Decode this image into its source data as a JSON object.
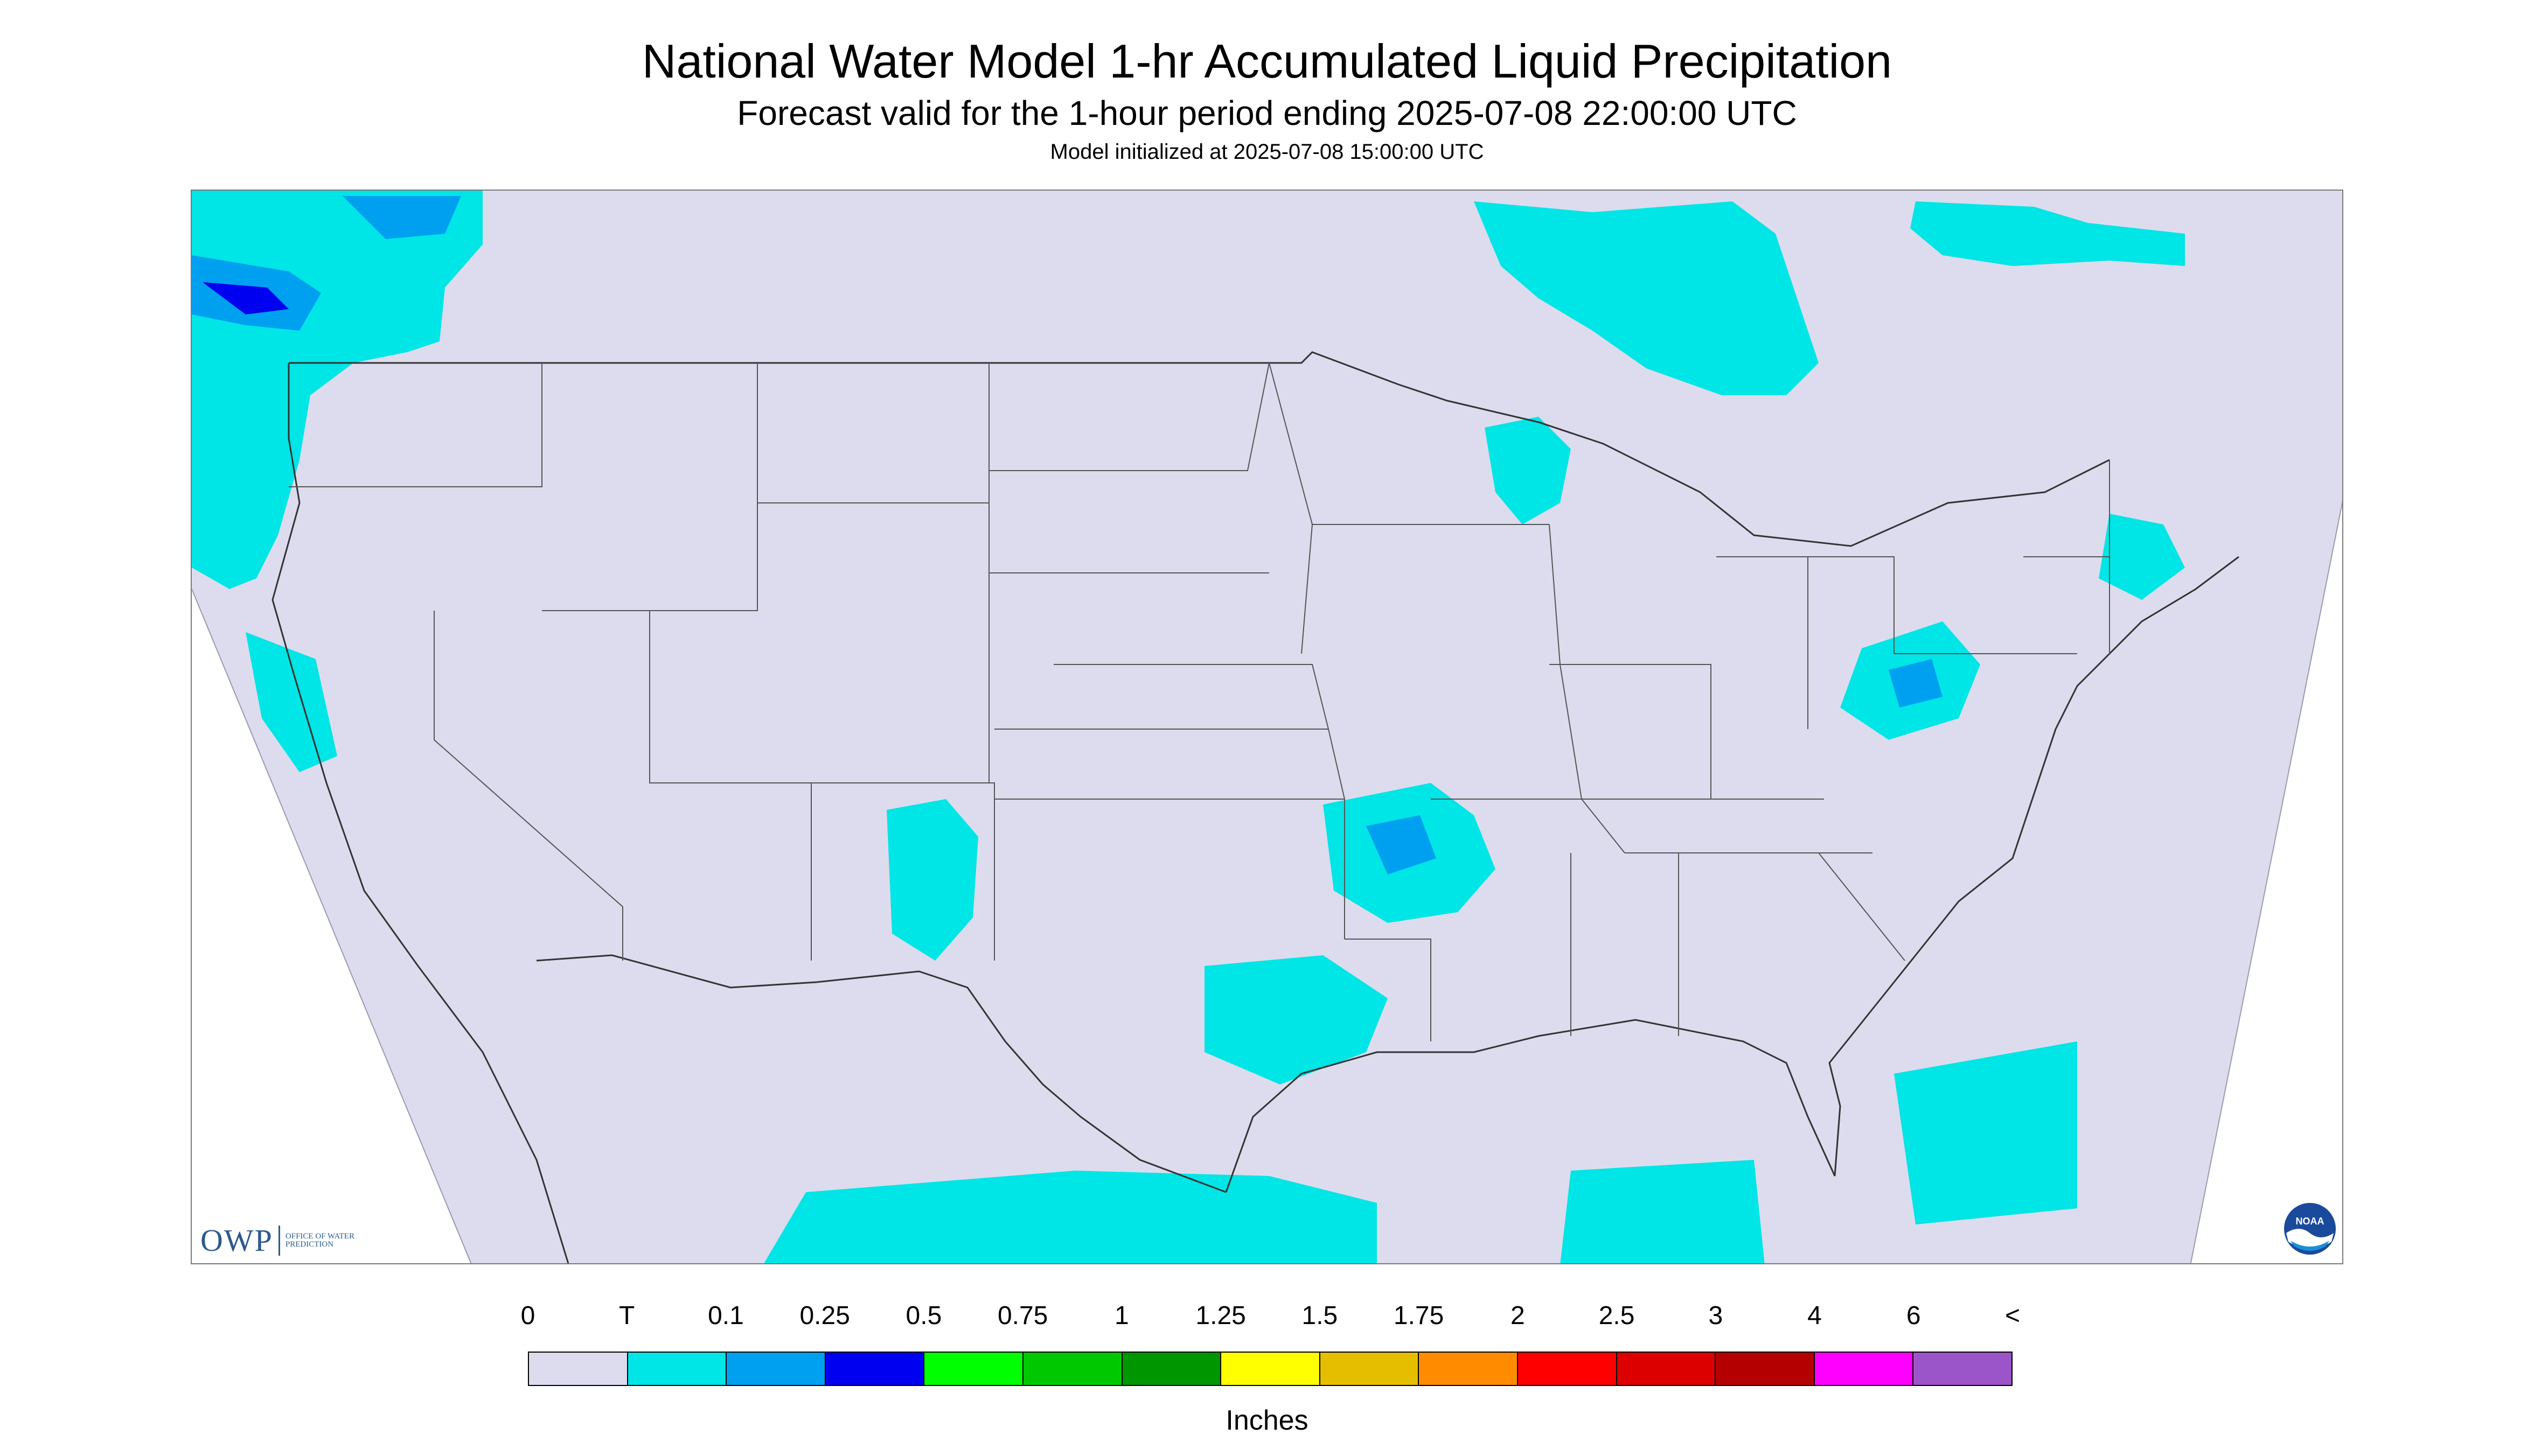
{
  "header": {
    "title": "National Water Model 1-hr Accumulated Liquid Precipitation",
    "subtitle": "Forecast valid for the 1-hour period ending 2025-07-08 22:00:00 UTC",
    "init_line": "Model initialized at 2025-07-08 15:00:00 UTC"
  },
  "map": {
    "colors": {
      "land_background": "#dcdcee",
      "outside_domain": "#ffffff",
      "borders": "#333333",
      "trace": "#00e5e5",
      "light": "#00a0f0",
      "heavy": "#0000f0"
    }
  },
  "logos": {
    "owp_mark": "OWP",
    "owp_name": "OFFICE OF WATER PREDICTION",
    "noaa_text": "NOAA"
  },
  "legend": {
    "labels": [
      "0",
      "T",
      "0.1",
      "0.25",
      "0.5",
      "0.75",
      "1",
      "1.25",
      "1.5",
      "1.75",
      "2",
      "2.5",
      "3",
      "4",
      "6",
      "<"
    ],
    "colors": [
      "#dcdcee",
      "#00e5e5",
      "#00a0f0",
      "#0000f0",
      "#00ff00",
      "#00c800",
      "#009600",
      "#ffff00",
      "#e6be00",
      "#ff8c00",
      "#ff0000",
      "#dc0000",
      "#b40000",
      "#ff00ff",
      "#9b55c8"
    ],
    "units": "Inches"
  }
}
